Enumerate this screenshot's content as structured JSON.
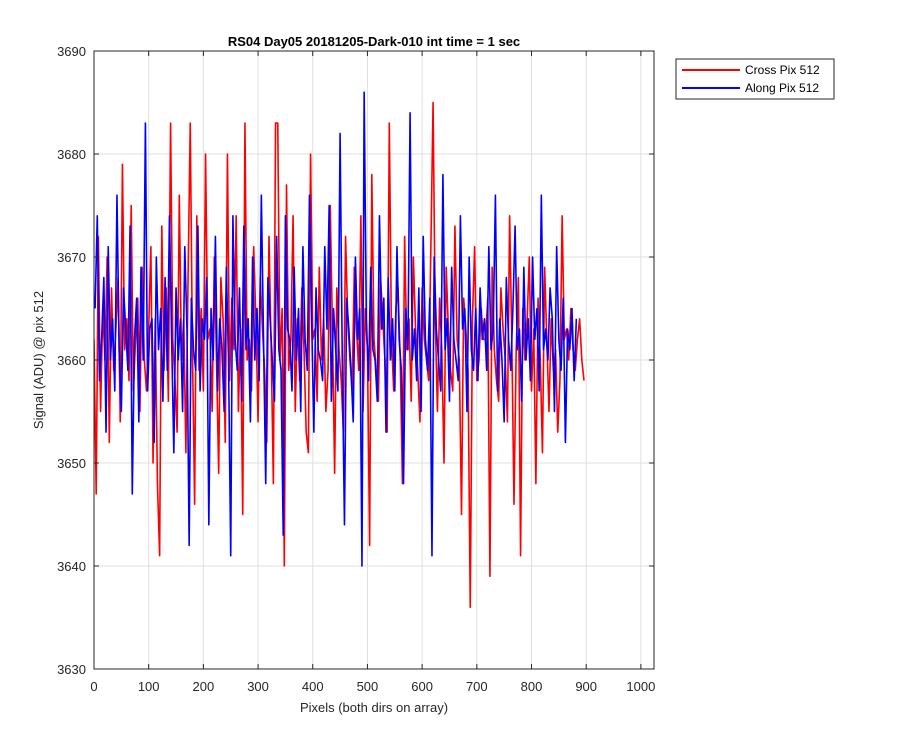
{
  "chart_data": {
    "type": "line",
    "title": "RS04 Day05 20181205-Dark-010 int time = 1 sec",
    "xlabel": "Pixels (both dirs on array)",
    "ylabel": "Signal (ADU) @ pix 512",
    "xlim": [
      0,
      1024
    ],
    "ylim": [
      3630,
      3690
    ],
    "xticks": [
      0,
      100,
      200,
      300,
      400,
      500,
      600,
      700,
      800,
      900,
      1000
    ],
    "yticks": [
      3630,
      3640,
      3650,
      3660,
      3670,
      3680,
      3690
    ],
    "xtick_labels": [
      "0",
      "100",
      "200",
      "300",
      "400",
      "500",
      "600",
      "700",
      "800",
      "900",
      "1000"
    ],
    "ytick_labels": [
      "3630",
      "3640",
      "3650",
      "3660",
      "3670",
      "3680",
      "3690"
    ],
    "grid": true,
    "legend_position": "outside-top-right",
    "series": [
      {
        "name": "Cross Pix 512",
        "color": "#ff0000",
        "x_start": 0,
        "x_step": 4,
        "values": [
          3662,
          3647,
          3672,
          3655,
          3665,
          3660,
          3670,
          3652,
          3667,
          3659,
          3663,
          3668,
          3654,
          3679,
          3661,
          3664,
          3658,
          3675,
          3657,
          3662,
          3666,
          3655,
          3669,
          3660,
          3657,
          3663,
          3671,
          3650,
          3664,
          3648,
          3641,
          3673,
          3659,
          3667,
          3656,
          3683,
          3662,
          3658,
          3653,
          3676,
          3660,
          3664,
          3651,
          3668,
          3683,
          3661,
          3646,
          3674,
          3659,
          3665,
          3657,
          3680,
          3662,
          3663,
          3655,
          3670,
          3660,
          3649,
          3668,
          3664,
          3652,
          3680,
          3658,
          3666,
          3661,
          3674,
          3655,
          3663,
          3645,
          3683,
          3660,
          3662,
          3657,
          3671,
          3664,
          3654,
          3668,
          3663,
          3659,
          3652,
          3672,
          3661,
          3648,
          3683,
          3683,
          3660,
          3665,
          3640,
          3677,
          3659,
          3662,
          3674,
          3655,
          3664,
          3658,
          3667,
          3661,
          3653,
          3651,
          3680,
          3662,
          3663,
          3656,
          3669,
          3660,
          3664,
          3655,
          3659,
          3675,
          3663,
          3649,
          3667,
          3661,
          3658,
          3653,
          3672,
          3664,
          3660,
          3657,
          3669,
          3663,
          3659,
          3674,
          3655,
          3665,
          3661,
          3642,
          3678,
          3662,
          3659,
          3656,
          3668,
          3664,
          3660,
          3653,
          3683,
          3662,
          3657,
          3665,
          3667,
          3660,
          3648,
          3672,
          3661,
          3664,
          3656,
          3670,
          3663,
          3659,
          3654,
          3667,
          3662,
          3660,
          3658,
          3671,
          3685,
          3664,
          3655,
          3666,
          3661,
          3650,
          3669,
          3663,
          3659,
          3657,
          3673,
          3662,
          3660,
          3645,
          3666,
          3663,
          3659,
          3636,
          3664,
          3671,
          3658,
          3660,
          3665,
          3662,
          3662,
          3666,
          3639,
          3669,
          3661,
          3658,
          3656,
          3667,
          3663,
          3660,
          3654,
          3674,
          3662,
          3646,
          3661,
          3668,
          3641,
          3665,
          3660,
          3664,
          3670,
          3657,
          3663,
          3648,
          3666,
          3660,
          3651,
          3669,
          3662,
          3655,
          3664,
          3659,
          3661,
          3653,
          3658,
          3674,
          3662,
          3663,
          3660,
          3665,
          3661,
          3659,
          3662,
          3664,
          3660,
          3658
        ]
      },
      {
        "name": "Along Pix 512",
        "color": "#0000ff",
        "x_start": 2,
        "x_step": 4,
        "values": [
          3665,
          3674,
          3658,
          3662,
          3668,
          3653,
          3671,
          3660,
          3664,
          3657,
          3676,
          3661,
          3655,
          3667,
          3663,
          3659,
          3673,
          3647,
          3662,
          3666,
          3654,
          3669,
          3660,
          3683,
          3657,
          3663,
          3664,
          3652,
          3670,
          3661,
          3665,
          3656,
          3668,
          3659,
          3674,
          3662,
          3651,
          3667,
          3660,
          3664,
          3655,
          3671,
          3663,
          3642,
          3666,
          3661,
          3659,
          3673,
          3657,
          3664,
          3662,
          3668,
          3644,
          3665,
          3660,
          3672,
          3657,
          3664,
          3661,
          3655,
          3669,
          3660,
          3641,
          3674,
          3662,
          3659,
          3667,
          3656,
          3673,
          3661,
          3664,
          3654,
          3670,
          3660,
          3665,
          3658,
          3676,
          3662,
          3648,
          3668,
          3664,
          3660,
          3656,
          3672,
          3661,
          3659,
          3643,
          3674,
          3663,
          3662,
          3657,
          3669,
          3660,
          3665,
          3655,
          3671,
          3662,
          3659,
          3676,
          3664,
          3653,
          3667,
          3661,
          3660,
          3658,
          3671,
          3663,
          3675,
          3656,
          3665,
          3661,
          3657,
          3682,
          3660,
          3644,
          3666,
          3663,
          3659,
          3654,
          3670,
          3662,
          3665,
          3640,
          3686,
          3664,
          3658,
          3669,
          3661,
          3660,
          3656,
          3674,
          3663,
          3666,
          3653,
          3668,
          3660,
          3664,
          3657,
          3671,
          3662,
          3659,
          3648,
          3665,
          3661,
          3684,
          3660,
          3663,
          3658,
          3667,
          3655,
          3672,
          3662,
          3659,
          3666,
          3641,
          3670,
          3663,
          3660,
          3657,
          3678,
          3661,
          3664,
          3656,
          3669,
          3662,
          3660,
          3658,
          3674,
          3663,
          3665,
          3655,
          3670,
          3661,
          3659,
          3665,
          3658,
          3667,
          3662,
          3664,
          3659,
          3671,
          3661,
          3663,
          3676,
          3657,
          3664,
          3660,
          3654,
          3668,
          3662,
          3659,
          3665,
          3673,
          3661,
          3663,
          3656,
          3669,
          3660,
          3664,
          3658,
          3670,
          3662,
          3665,
          3657,
          3676,
          3661,
          3663,
          3660,
          3667,
          3664,
          3655,
          3671,
          3662,
          3659,
          3666,
          3652,
          3663,
          3661,
          3665,
          3658,
          3664
        ]
      }
    ]
  }
}
